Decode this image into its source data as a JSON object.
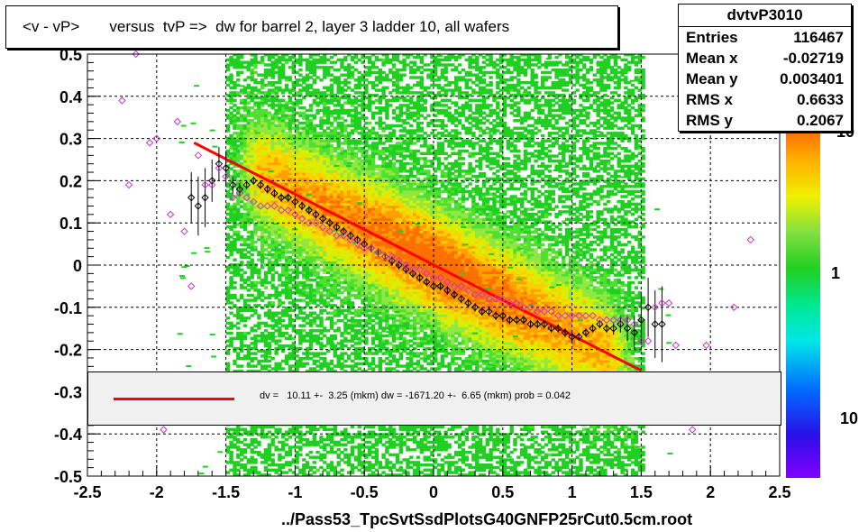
{
  "title": "<v - vP>       versus  tvP =>  dw for barrel 2, layer 3 ladder 10, all wafers",
  "stats": {
    "name": "dvtvP3010",
    "rows": [
      {
        "label": "Entries",
        "value": "116467"
      },
      {
        "label": "Mean x",
        "value": "-0.02719"
      },
      {
        "label": "Mean y",
        "value": "0.003401"
      },
      {
        "label": "RMS x",
        "value": "0.6633"
      },
      {
        "label": "RMS y",
        "value": "0.2067"
      }
    ]
  },
  "fit_text": "dv =   10.11 +-  3.25 (mkm) dw = -1671.20 +-  6.65 (mkm) prob = 0.042",
  "colors": {
    "fit_line": "#ff0000",
    "profile_black": "#000000",
    "profile_magenta": "#cc33cc"
  },
  "chart_data": {
    "type": "heatmap",
    "title": "<v - vP>       versus  tvP =>  dw for barrel 2, layer 3 ladder 10, all wafers",
    "xlabel": "../Pass53_TpcSvtSsdPlotsG40GNFP25rCut0.5cm.root",
    "ylabel": "",
    "xlim": [
      -2.5,
      2.5
    ],
    "ylim": [
      -0.5,
      0.5
    ],
    "grid": true,
    "log_z": true,
    "x_ticks": [
      -2.5,
      -2,
      -1.5,
      -1,
      -0.5,
      0,
      0.5,
      1,
      1.5,
      2,
      2.5
    ],
    "x_tick_labels": [
      "-2.5",
      "-2",
      "-1.5",
      "-1",
      "-0.5",
      "0",
      "0.5",
      "1",
      "1.5",
      "2",
      "2.5"
    ],
    "y_ticks": [
      -0.5,
      -0.4,
      -0.3,
      -0.2,
      -0.1,
      0,
      0.1,
      0.2,
      0.3,
      0.4,
      0.5
    ],
    "y_tick_labels": [
      "-0.5",
      "-0.4",
      "-0.3",
      "-0.2",
      "-0.1",
      "0",
      "0.1",
      "0.2",
      "0.3",
      "0.4",
      "0.5"
    ],
    "z_tick_labels": [
      "10",
      "1",
      "10"
    ],
    "fit_line": {
      "x": [
        -1.73,
        1.5
      ],
      "y": [
        0.29,
        -0.25
      ]
    },
    "profile_black": {
      "x": [
        -1.75,
        -1.7,
        -1.65,
        -1.6,
        -1.55,
        -1.5,
        -1.45,
        -1.4,
        -1.35,
        -1.3,
        -1.25,
        -1.2,
        -1.15,
        -1.1,
        -1.05,
        -1.0,
        -0.95,
        -0.9,
        -0.85,
        -0.8,
        -0.75,
        -0.7,
        -0.65,
        -0.6,
        -0.55,
        -0.5,
        -0.45,
        -0.4,
        -0.35,
        -0.3,
        -0.25,
        -0.2,
        -0.15,
        -0.1,
        -0.05,
        0.0,
        0.05,
        0.1,
        0.15,
        0.2,
        0.25,
        0.3,
        0.35,
        0.4,
        0.45,
        0.5,
        0.55,
        0.6,
        0.65,
        0.7,
        0.75,
        0.8,
        0.85,
        0.9,
        0.95,
        1.0,
        1.05,
        1.1,
        1.15,
        1.2,
        1.25,
        1.3,
        1.35,
        1.4,
        1.45,
        1.5,
        1.55,
        1.6,
        1.65
      ],
      "y": [
        0.16,
        0.14,
        0.16,
        0.2,
        0.24,
        0.23,
        0.19,
        0.18,
        0.19,
        0.2,
        0.19,
        0.18,
        0.17,
        0.16,
        0.16,
        0.15,
        0.14,
        0.13,
        0.12,
        0.11,
        0.1,
        0.09,
        0.08,
        0.07,
        0.06,
        0.05,
        0.04,
        0.03,
        0.02,
        0.01,
        0.0,
        -0.01,
        -0.02,
        -0.03,
        -0.04,
        -0.05,
        -0.05,
        -0.06,
        -0.07,
        -0.08,
        -0.09,
        -0.1,
        -0.11,
        -0.11,
        -0.12,
        -0.12,
        -0.13,
        -0.13,
        -0.13,
        -0.14,
        -0.14,
        -0.14,
        -0.15,
        -0.15,
        -0.16,
        -0.17,
        -0.17,
        -0.16,
        -0.15,
        -0.14,
        -0.15,
        -0.15,
        -0.14,
        -0.15,
        -0.16,
        -0.13,
        -0.1,
        -0.14,
        -0.14
      ],
      "err": [
        0.06,
        0.07,
        0.07,
        0.05,
        0.04,
        0.04,
        0.02,
        0.015,
        0.01,
        0.01,
        0.01,
        0.01,
        0.01,
        0.01,
        0.01,
        0.01,
        0.01,
        0.01,
        0.01,
        0.01,
        0.01,
        0.01,
        0.01,
        0.01,
        0.01,
        0.01,
        0.01,
        0.01,
        0.01,
        0.01,
        0.01,
        0.01,
        0.01,
        0.01,
        0.01,
        0.01,
        0.01,
        0.01,
        0.01,
        0.01,
        0.01,
        0.01,
        0.01,
        0.01,
        0.01,
        0.01,
        0.01,
        0.01,
        0.01,
        0.01,
        0.01,
        0.01,
        0.01,
        0.01,
        0.01,
        0.01,
        0.01,
        0.01,
        0.01,
        0.01,
        0.01,
        0.015,
        0.02,
        0.03,
        0.04,
        0.06,
        0.07,
        0.08,
        0.09
      ]
    },
    "profile_magenta": {
      "x": [
        -2.25,
        -2.2,
        -2.15,
        -2.05,
        -2.0,
        -1.95,
        -1.9,
        -1.85,
        -1.8,
        -1.75,
        -1.7,
        -1.65,
        -1.6,
        -1.55,
        -1.5,
        -1.45,
        -1.4,
        -1.35,
        -1.3,
        -1.25,
        -1.2,
        -1.15,
        -1.1,
        -1.05,
        -1.0,
        -0.95,
        -0.9,
        -0.85,
        -0.8,
        -0.75,
        -0.7,
        -0.65,
        -0.6,
        -0.55,
        -0.5,
        -0.45,
        -0.4,
        -0.35,
        -0.3,
        -0.25,
        -0.2,
        -0.15,
        -0.1,
        -0.05,
        0.0,
        0.05,
        0.1,
        0.15,
        0.2,
        0.25,
        0.3,
        0.35,
        0.4,
        0.45,
        0.5,
        0.55,
        0.6,
        0.65,
        0.7,
        0.75,
        0.8,
        0.85,
        0.9,
        0.95,
        1.0,
        1.05,
        1.1,
        1.15,
        1.2,
        1.25,
        1.3,
        1.35,
        1.4,
        1.45,
        1.5,
        1.55,
        1.6,
        1.65,
        1.7,
        1.75,
        1.87,
        1.97,
        2.17,
        2.29
      ],
      "y": [
        0.39,
        0.19,
        0.5,
        0.29,
        0.3,
        -0.39,
        0.12,
        0.34,
        0.08,
        -0.05,
        0.26,
        0.19,
        0.19,
        0.23,
        0.21,
        0.16,
        0.17,
        0.16,
        0.15,
        0.14,
        0.14,
        0.14,
        0.13,
        0.13,
        0.12,
        0.11,
        0.1,
        0.1,
        0.09,
        0.08,
        0.07,
        0.07,
        0.06,
        0.05,
        0.04,
        0.04,
        0.03,
        0.02,
        0.02,
        0.01,
        0.0,
        -0.01,
        -0.01,
        -0.02,
        -0.03,
        -0.03,
        -0.04,
        -0.05,
        -0.05,
        -0.06,
        -0.07,
        -0.07,
        -0.08,
        -0.08,
        -0.08,
        -0.09,
        -0.09,
        -0.1,
        -0.1,
        -0.11,
        -0.11,
        -0.11,
        -0.12,
        -0.12,
        -0.12,
        -0.12,
        -0.12,
        -0.12,
        -0.13,
        -0.13,
        -0.13,
        -0.13,
        -0.13,
        -0.14,
        -0.18,
        -0.18,
        -0.1,
        -0.09,
        -0.09,
        -0.19,
        -0.39,
        -0.19,
        -0.1,
        0.06
      ]
    }
  }
}
